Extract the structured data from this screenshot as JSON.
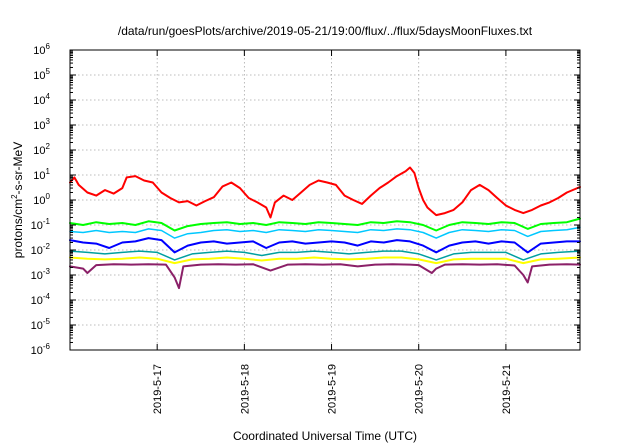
{
  "chart_data": {
    "type": "line",
    "title": "/data/run/goesPlots/archive/2019-05-21/19:00/flux/../flux/5daysMoonFluxes.txt",
    "xlabel": "Coordinated Universal Time (UTC)",
    "ylabel": "protons/cm2-s-sr-MeV",
    "ylabel_parts": [
      "protons/cm",
      "2",
      "-s-sr-MeV"
    ],
    "yscale": "log",
    "ylim_exp": [
      -6,
      6
    ],
    "ytick_exponents": [
      -6,
      -5,
      -4,
      -3,
      -2,
      -1,
      0,
      1,
      2,
      3,
      4,
      5,
      6
    ],
    "ytick_base": "10",
    "xlim_days": [
      16.0,
      21.85
    ],
    "xtick_days": [
      17,
      18,
      19,
      20,
      21
    ],
    "xtick_labels": [
      "2019-5-17",
      "2019-5-18",
      "2019-5-19",
      "2019-5-20",
      "2019-5-21"
    ],
    "grid": true,
    "series": [
      {
        "color": "#ff0000",
        "width": 2,
        "x": [
          16.0,
          16.05,
          16.1,
          16.2,
          16.3,
          16.4,
          16.5,
          16.6,
          16.65,
          16.75,
          16.85,
          16.95,
          17.05,
          17.15,
          17.25,
          17.35,
          17.45,
          17.55,
          17.65,
          17.75,
          17.85,
          17.95,
          18.05,
          18.15,
          18.25,
          18.3,
          18.35,
          18.45,
          18.55,
          18.65,
          18.75,
          18.85,
          18.95,
          19.05,
          19.15,
          19.25,
          19.35,
          19.45,
          19.55,
          19.65,
          19.75,
          19.85,
          19.9,
          19.95,
          20.0,
          20.05,
          20.1,
          20.15,
          20.2,
          20.3,
          20.4,
          20.5,
          20.6,
          20.7,
          20.8,
          20.9,
          21.0,
          21.1,
          21.2,
          21.3,
          21.4,
          21.5,
          21.6,
          21.7,
          21.85
        ],
        "y": [
          5,
          8,
          4,
          2,
          1.5,
          2.5,
          1.8,
          3,
          8,
          9,
          6,
          5,
          2,
          1.2,
          0.8,
          0.9,
          0.6,
          0.9,
          1.3,
          3.5,
          5,
          3,
          1.2,
          0.8,
          0.5,
          0.2,
          0.8,
          1.5,
          1,
          2,
          4,
          6,
          5,
          4,
          1.5,
          1,
          0.7,
          1.5,
          3,
          5,
          9,
          14,
          20,
          12,
          3,
          1,
          0.5,
          0.35,
          0.25,
          0.3,
          0.4,
          0.8,
          2.5,
          4,
          2.5,
          1.2,
          0.6,
          0.4,
          0.3,
          0.4,
          0.6,
          0.8,
          1.2,
          2,
          3.3
        ]
      },
      {
        "color": "#00ff00",
        "width": 2,
        "x": [
          16.0,
          16.15,
          16.3,
          16.45,
          16.6,
          16.75,
          16.9,
          17.05,
          17.2,
          17.35,
          17.5,
          17.65,
          17.8,
          17.95,
          18.1,
          18.25,
          18.4,
          18.55,
          18.7,
          18.85,
          19.0,
          19.15,
          19.3,
          19.45,
          19.6,
          19.75,
          19.9,
          20.05,
          20.2,
          20.35,
          20.5,
          20.65,
          20.8,
          20.95,
          21.1,
          21.25,
          21.4,
          21.55,
          21.7,
          21.85
        ],
        "y": [
          0.12,
          0.1,
          0.13,
          0.11,
          0.12,
          0.1,
          0.14,
          0.12,
          0.06,
          0.09,
          0.11,
          0.12,
          0.13,
          0.11,
          0.12,
          0.1,
          0.13,
          0.12,
          0.11,
          0.13,
          0.12,
          0.11,
          0.1,
          0.13,
          0.12,
          0.14,
          0.13,
          0.1,
          0.06,
          0.1,
          0.13,
          0.12,
          0.11,
          0.13,
          0.12,
          0.07,
          0.11,
          0.12,
          0.13,
          0.18
        ]
      },
      {
        "color": "#00c8ff",
        "width": 1.5,
        "x": [
          16.0,
          16.15,
          16.3,
          16.45,
          16.6,
          16.75,
          16.9,
          17.05,
          17.2,
          17.35,
          17.5,
          17.65,
          17.8,
          17.95,
          18.1,
          18.25,
          18.4,
          18.55,
          18.7,
          18.85,
          19.0,
          19.15,
          19.3,
          19.45,
          19.6,
          19.75,
          19.9,
          20.05,
          20.2,
          20.35,
          20.5,
          20.65,
          20.8,
          20.95,
          21.1,
          21.25,
          21.4,
          21.55,
          21.7,
          21.85
        ],
        "y": [
          0.055,
          0.05,
          0.06,
          0.05,
          0.055,
          0.05,
          0.07,
          0.06,
          0.03,
          0.045,
          0.05,
          0.06,
          0.065,
          0.055,
          0.06,
          0.05,
          0.065,
          0.06,
          0.055,
          0.065,
          0.06,
          0.055,
          0.05,
          0.065,
          0.06,
          0.07,
          0.065,
          0.05,
          0.03,
          0.05,
          0.065,
          0.06,
          0.055,
          0.065,
          0.06,
          0.035,
          0.055,
          0.06,
          0.065,
          0.08
        ]
      },
      {
        "color": "#0000ff",
        "width": 2,
        "x": [
          16.0,
          16.15,
          16.3,
          16.45,
          16.6,
          16.75,
          16.9,
          17.05,
          17.2,
          17.35,
          17.5,
          17.65,
          17.8,
          17.95,
          18.1,
          18.25,
          18.4,
          18.55,
          18.7,
          18.85,
          19.0,
          19.15,
          19.3,
          19.45,
          19.6,
          19.75,
          19.9,
          20.05,
          20.2,
          20.35,
          20.5,
          20.65,
          20.8,
          20.95,
          21.1,
          21.25,
          21.4,
          21.55,
          21.7,
          21.85
        ],
        "y": [
          0.025,
          0.02,
          0.018,
          0.012,
          0.02,
          0.022,
          0.03,
          0.025,
          0.008,
          0.015,
          0.02,
          0.022,
          0.018,
          0.02,
          0.022,
          0.012,
          0.02,
          0.022,
          0.018,
          0.02,
          0.022,
          0.02,
          0.015,
          0.022,
          0.02,
          0.025,
          0.022,
          0.015,
          0.008,
          0.015,
          0.02,
          0.022,
          0.018,
          0.022,
          0.02,
          0.008,
          0.018,
          0.02,
          0.022,
          0.022
        ]
      },
      {
        "color": "#00a0a0",
        "width": 1.5,
        "x": [
          16.0,
          16.2,
          16.4,
          16.6,
          16.8,
          17.0,
          17.2,
          17.4,
          17.6,
          17.8,
          18.0,
          18.2,
          18.4,
          18.6,
          18.8,
          19.0,
          19.2,
          19.4,
          19.6,
          19.8,
          20.0,
          20.2,
          20.4,
          20.6,
          20.8,
          21.0,
          21.2,
          21.4,
          21.6,
          21.85
        ],
        "y": [
          0.009,
          0.008,
          0.007,
          0.008,
          0.009,
          0.008,
          0.004,
          0.007,
          0.008,
          0.009,
          0.008,
          0.006,
          0.008,
          0.008,
          0.009,
          0.008,
          0.007,
          0.008,
          0.009,
          0.009,
          0.007,
          0.004,
          0.007,
          0.008,
          0.008,
          0.008,
          0.004,
          0.007,
          0.008,
          0.009
        ]
      },
      {
        "color": "#ffff00",
        "width": 2,
        "x": [
          16.0,
          16.2,
          16.4,
          16.6,
          16.8,
          17.0,
          17.2,
          17.4,
          17.6,
          17.8,
          18.0,
          18.2,
          18.4,
          18.6,
          18.8,
          19.0,
          19.2,
          19.4,
          19.6,
          19.8,
          20.0,
          20.2,
          20.4,
          20.6,
          20.8,
          21.0,
          21.2,
          21.4,
          21.6,
          21.85
        ],
        "y": [
          0.005,
          0.0045,
          0.0042,
          0.0045,
          0.005,
          0.0045,
          0.003,
          0.0042,
          0.0045,
          0.005,
          0.0045,
          0.0038,
          0.0045,
          0.0045,
          0.005,
          0.0045,
          0.0042,
          0.0045,
          0.005,
          0.005,
          0.0042,
          0.003,
          0.0042,
          0.0045,
          0.0045,
          0.0045,
          0.003,
          0.0042,
          0.0045,
          0.005
        ]
      },
      {
        "color": "#8b2068",
        "width": 2,
        "x": [
          16.0,
          16.15,
          16.2,
          16.3,
          16.5,
          16.7,
          16.9,
          17.1,
          17.2,
          17.25,
          17.3,
          17.5,
          17.7,
          17.9,
          18.1,
          18.3,
          18.5,
          18.7,
          18.9,
          19.1,
          19.3,
          19.5,
          19.7,
          19.9,
          20.0,
          20.15,
          20.2,
          20.3,
          20.5,
          20.7,
          20.9,
          21.1,
          21.2,
          21.25,
          21.3,
          21.5,
          21.7,
          21.85
        ],
        "y": [
          0.0022,
          0.0018,
          0.0012,
          0.0025,
          0.0027,
          0.0026,
          0.0027,
          0.0026,
          0.0008,
          0.0003,
          0.0022,
          0.0026,
          0.0027,
          0.0026,
          0.0027,
          0.0015,
          0.0026,
          0.0027,
          0.0026,
          0.0027,
          0.0022,
          0.0026,
          0.0027,
          0.0026,
          0.0025,
          0.0012,
          0.0018,
          0.0026,
          0.0027,
          0.0026,
          0.0027,
          0.0024,
          0.001,
          0.0005,
          0.0022,
          0.0026,
          0.0027,
          0.0026
        ]
      }
    ]
  }
}
